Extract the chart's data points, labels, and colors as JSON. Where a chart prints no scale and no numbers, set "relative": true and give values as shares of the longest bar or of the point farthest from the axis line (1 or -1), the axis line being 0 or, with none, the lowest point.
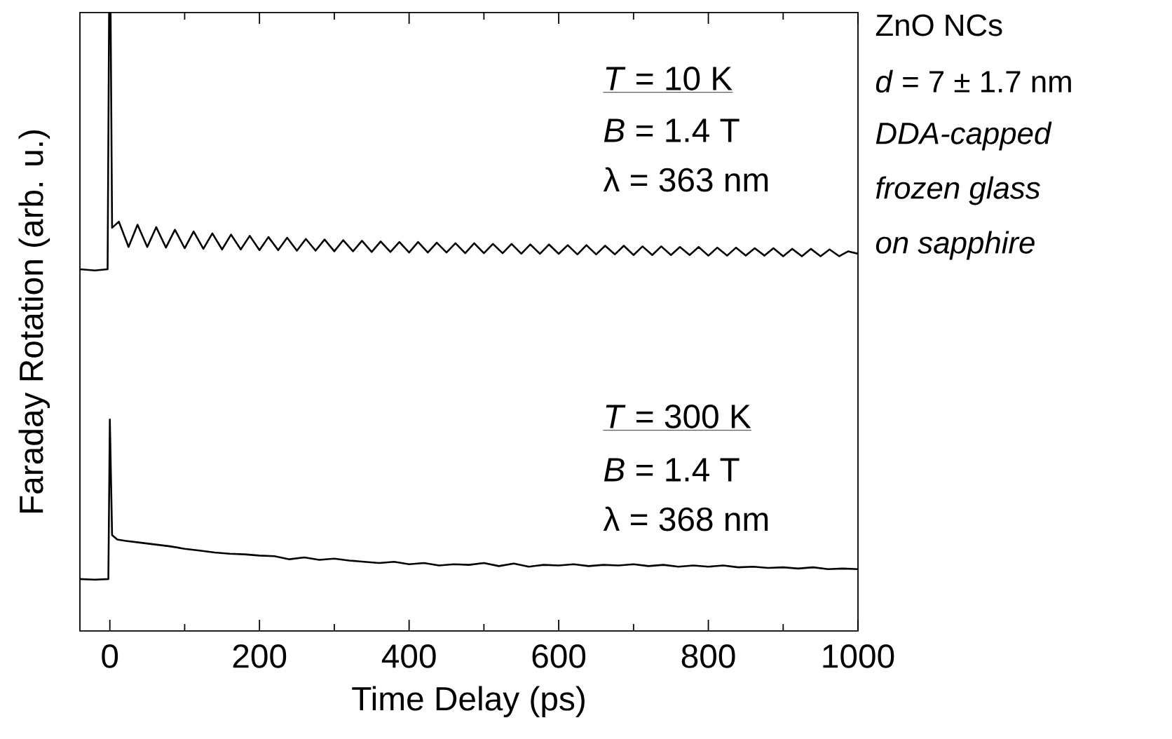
{
  "chart_data": {
    "type": "line",
    "relative": true,
    "xlabel": "Time Delay (ps)",
    "ylabel": "Faraday Rotation (arb. u.)",
    "xlim": [
      -40,
      1000
    ],
    "xticks": [
      0,
      {
        "value": 100,
        "label": null
      },
      200,
      {
        "value": 300,
        "label": null
      },
      400,
      {
        "value": 500,
        "label": null
      },
      600,
      {
        "value": 700,
        "label": null
      },
      800,
      {
        "value": 900,
        "label": null
      },
      1000
    ],
    "annotations": [
      "*T* = 10 K",
      "*B* = 1.4 T",
      "λ = 363 nm",
      "*T* = 300 K",
      "*B* = 1.4 T",
      "λ = 368 nm",
      "ZnO NCs",
      "*d* =  7 ± 1.7 nm",
      "DDA-capped",
      "frozen glass",
      "on sapphire"
    ],
    "series": [
      {
        "color": "#000000",
        "x": [
          -40,
          -20,
          -3,
          -1,
          1,
          3,
          12,
          25,
          37,
          50,
          62,
          75,
          87,
          100,
          112,
          125,
          137,
          150,
          162,
          175,
          187,
          200,
          212,
          225,
          237,
          250,
          262,
          275,
          287,
          300,
          312,
          325,
          337,
          350,
          362,
          375,
          387,
          400,
          412,
          425,
          437,
          450,
          462,
          475,
          487,
          500,
          512,
          525,
          537,
          550,
          562,
          575,
          587,
          600,
          612,
          625,
          637,
          650,
          662,
          675,
          687,
          700,
          712,
          725,
          737,
          750,
          762,
          775,
          787,
          800,
          812,
          825,
          837,
          850,
          862,
          875,
          887,
          900,
          912,
          925,
          937,
          950,
          962,
          975,
          987,
          1000
        ],
        "values": [
          0.585,
          0.583,
          0.585,
          1.0,
          1.0,
          0.652,
          0.662,
          0.621,
          0.657,
          0.621,
          0.653,
          0.62,
          0.649,
          0.619,
          0.646,
          0.618,
          0.643,
          0.617,
          0.641,
          0.617,
          0.639,
          0.616,
          0.637,
          0.616,
          0.636,
          0.615,
          0.634,
          0.615,
          0.633,
          0.614,
          0.632,
          0.614,
          0.631,
          0.613,
          0.63,
          0.613,
          0.629,
          0.612,
          0.629,
          0.612,
          0.628,
          0.612,
          0.627,
          0.611,
          0.627,
          0.611,
          0.626,
          0.611,
          0.626,
          0.61,
          0.625,
          0.61,
          0.625,
          0.61,
          0.624,
          0.609,
          0.624,
          0.609,
          0.623,
          0.609,
          0.623,
          0.608,
          0.622,
          0.608,
          0.622,
          0.608,
          0.621,
          0.608,
          0.621,
          0.607,
          0.62,
          0.607,
          0.62,
          0.607,
          0.619,
          0.607,
          0.619,
          0.606,
          0.618,
          0.606,
          0.618,
          0.606,
          0.617,
          0.606,
          0.614,
          0.61
        ]
      },
      {
        "color": "#000000",
        "x": [
          -40,
          -20,
          -2,
          0,
          3,
          10,
          20,
          40,
          60,
          80,
          100,
          120,
          140,
          160,
          180,
          200,
          220,
          240,
          260,
          280,
          300,
          320,
          340,
          360,
          380,
          400,
          420,
          440,
          460,
          480,
          500,
          520,
          540,
          560,
          580,
          600,
          620,
          640,
          660,
          680,
          700,
          720,
          740,
          760,
          780,
          800,
          820,
          840,
          860,
          880,
          900,
          920,
          940,
          960,
          980,
          1000
        ],
        "values": [
          0.084,
          0.083,
          0.084,
          0.342,
          0.155,
          0.148,
          0.146,
          0.143,
          0.14,
          0.137,
          0.133,
          0.13,
          0.127,
          0.125,
          0.124,
          0.122,
          0.121,
          0.116,
          0.119,
          0.115,
          0.117,
          0.114,
          0.112,
          0.11,
          0.112,
          0.108,
          0.11,
          0.106,
          0.108,
          0.107,
          0.11,
          0.105,
          0.109,
          0.104,
          0.107,
          0.106,
          0.108,
          0.105,
          0.107,
          0.106,
          0.108,
          0.105,
          0.107,
          0.104,
          0.106,
          0.104,
          0.106,
          0.103,
          0.104,
          0.102,
          0.103,
          0.101,
          0.103,
          0.1,
          0.101,
          0.1
        ]
      }
    ]
  }
}
